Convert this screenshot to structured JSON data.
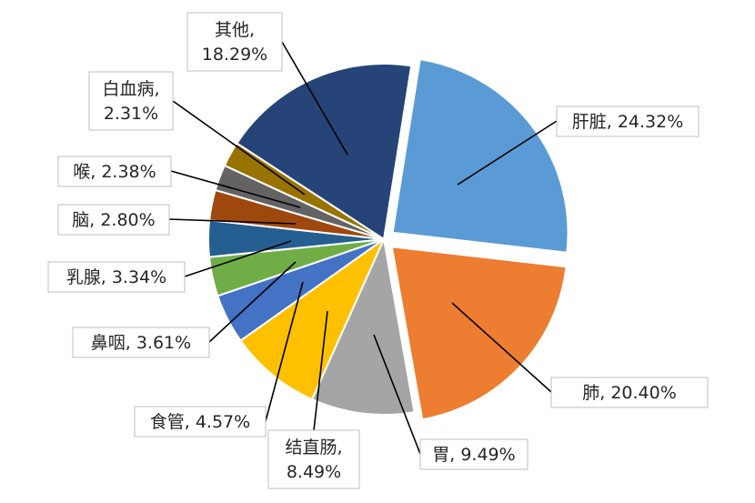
{
  "chart_data": {
    "type": "pie",
    "title": "",
    "exploded_slices": [
      "肝脏",
      "肺"
    ],
    "slices": [
      {
        "name": "肝脏",
        "value": 24.32,
        "label_lines": [
          "肝脏, 24.32%"
        ],
        "color": "#5b9bd5"
      },
      {
        "name": "肺",
        "value": 20.4,
        "label_lines": [
          "肺, 20.40%"
        ],
        "color": "#ed7d31"
      },
      {
        "name": "胃",
        "value": 9.49,
        "label_lines": [
          "胃, 9.49%"
        ],
        "color": "#a5a5a5"
      },
      {
        "name": "结直肠",
        "value": 8.49,
        "label_lines": [
          "结直肠,",
          "8.49%"
        ],
        "color": "#ffc000"
      },
      {
        "name": "食管",
        "value": 4.57,
        "label_lines": [
          "食管, 4.57%"
        ],
        "color": "#ffc000"
      },
      {
        "name": "鼻咽",
        "value": 3.61,
        "label_lines": [
          "鼻咽, 3.61%"
        ],
        "color": "#4472c4"
      },
      {
        "name": "乳腺",
        "value": 3.34,
        "label_lines": [
          "乳腺, 3.34%"
        ],
        "color": "#70ad47"
      },
      {
        "name": "脑",
        "value": 2.8,
        "label_lines": [
          "脑, 2.80%"
        ],
        "color": "#255e91"
      },
      {
        "name": "喉",
        "value": 2.38,
        "label_lines": [
          "喉, 2.38%"
        ],
        "color": "#9e480e"
      },
      {
        "name": "白血病",
        "value": 2.31,
        "label_lines": [
          "白血病,",
          "2.31%"
        ],
        "color": "#636363"
      },
      {
        "name": "其他",
        "value": 18.29,
        "label_lines": [
          "其他,",
          "18.29%"
        ],
        "color": "#264478"
      }
    ],
    "legend": "none"
  }
}
